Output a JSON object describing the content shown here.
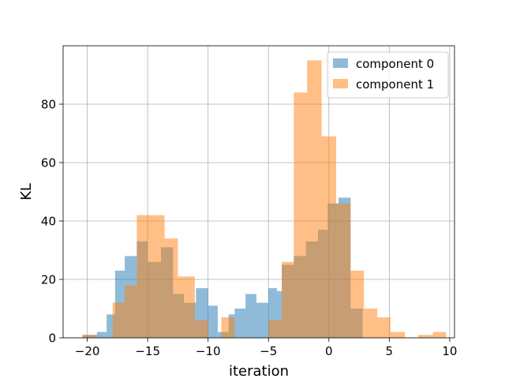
{
  "chart_data": {
    "type": "bar",
    "title": "",
    "xlabel": "iteration",
    "ylabel": "KL",
    "xlim": [
      -22.0,
      10.4
    ],
    "ylim": [
      0,
      100
    ],
    "xticks": [
      -20,
      -15,
      -10,
      -5,
      0,
      5,
      10
    ],
    "yticks": [
      0,
      20,
      40,
      60,
      80
    ],
    "grid": true,
    "legend_position": "top-right",
    "series": [
      {
        "name": "component 0",
        "color": "#1f77b4",
        "opacity": 0.5,
        "bins": [
          [
            -20.4,
            -19.2,
            1
          ],
          [
            -19.2,
            -18.4,
            2
          ],
          [
            -18.4,
            -17.7,
            8
          ],
          [
            -17.7,
            -16.9,
            23
          ],
          [
            -16.9,
            -15.9,
            28
          ],
          [
            -15.9,
            -15.0,
            33
          ],
          [
            -15.0,
            -13.9,
            26
          ],
          [
            -13.9,
            -12.9,
            31
          ],
          [
            -12.9,
            -12.0,
            15
          ],
          [
            -12.0,
            -11.0,
            12
          ],
          [
            -11.0,
            -10.0,
            17
          ],
          [
            -10.0,
            -9.2,
            11
          ],
          [
            -9.2,
            -8.3,
            2
          ],
          [
            -8.3,
            -7.8,
            8
          ],
          [
            -7.8,
            -6.9,
            10
          ],
          [
            -6.9,
            -6.0,
            15
          ],
          [
            -6.0,
            -5.0,
            12
          ],
          [
            -5.0,
            -4.3,
            17
          ],
          [
            -4.3,
            -3.9,
            16
          ],
          [
            -3.9,
            -2.9,
            25
          ],
          [
            -2.9,
            -1.9,
            28
          ],
          [
            -1.9,
            -0.9,
            33
          ],
          [
            -0.9,
            -0.1,
            37
          ],
          [
            -0.1,
            0.8,
            46
          ],
          [
            0.8,
            1.8,
            48
          ],
          [
            1.8,
            2.8,
            10
          ]
        ]
      },
      {
        "name": "component 1",
        "color": "#ff7f0e",
        "opacity": 0.5,
        "bins": [
          [
            -20.4,
            -19.2,
            1
          ],
          [
            -19.2,
            -17.9,
            0
          ],
          [
            -17.9,
            -17.6,
            12
          ],
          [
            -17.6,
            -16.9,
            12
          ],
          [
            -16.9,
            -15.9,
            18
          ],
          [
            -15.9,
            -13.6,
            42
          ],
          [
            -13.6,
            -12.5,
            34
          ],
          [
            -12.5,
            -11.1,
            21
          ],
          [
            -11.1,
            -10.0,
            6
          ],
          [
            -10.0,
            -8.9,
            0
          ],
          [
            -8.9,
            -7.8,
            7
          ],
          [
            -7.8,
            -5.0,
            0
          ],
          [
            -5.0,
            -3.9,
            6
          ],
          [
            -3.9,
            -2.9,
            26
          ],
          [
            -2.9,
            -1.8,
            84
          ],
          [
            -1.8,
            -0.6,
            95
          ],
          [
            -0.6,
            0.6,
            69
          ],
          [
            0.6,
            1.8,
            46
          ],
          [
            1.8,
            2.9,
            23
          ],
          [
            2.9,
            4.0,
            10
          ],
          [
            4.0,
            5.1,
            7
          ],
          [
            5.1,
            6.3,
            2
          ],
          [
            6.3,
            7.4,
            0
          ],
          [
            7.4,
            8.6,
            1
          ],
          [
            8.6,
            9.7,
            2
          ]
        ]
      }
    ]
  }
}
